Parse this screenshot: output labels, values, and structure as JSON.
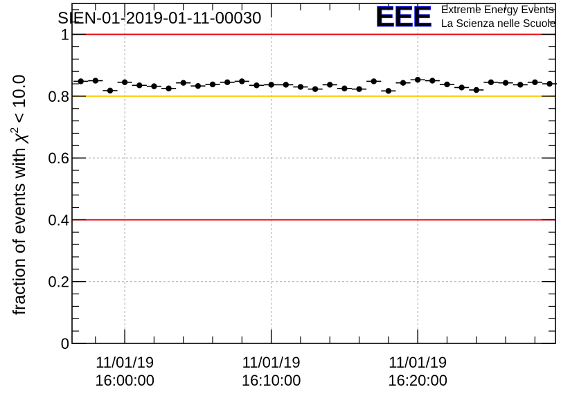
{
  "chart_data": {
    "type": "scatter",
    "title": "SIEN-01-2019-01-11-00030",
    "ylabel": "fraction of events with",
    "ylabel_chi": "χ",
    "ylabel_sup": "2",
    "ylabel_tail": "< 10.0",
    "ylim": [
      0,
      1.1
    ],
    "y_ticks": [
      {
        "v": 0,
        "label": "0"
      },
      {
        "v": 0.2,
        "label": "0.2"
      },
      {
        "v": 0.4,
        "label": "0.4"
      },
      {
        "v": 0.6,
        "label": "0.6"
      },
      {
        "v": 0.8,
        "label": "0.8"
      },
      {
        "v": 1.0,
        "label": "1"
      }
    ],
    "xlim_minutes": [
      -3.6,
      29.4
    ],
    "x_major_ticks": [
      {
        "t": 0,
        "date": "11/01/19",
        "time": "16:00:00"
      },
      {
        "t": 10,
        "date": "11/01/19",
        "time": "16:10:00"
      },
      {
        "t": 20,
        "date": "11/01/19",
        "time": "16:20:00"
      }
    ],
    "x_unit": "minutes after 11/01/19 16:00:00",
    "bin_width_minutes": 1,
    "x": [
      -3.0,
      -2.0,
      -1.0,
      0.0,
      1.0,
      2.0,
      3.0,
      4.0,
      5.0,
      6.0,
      7.0,
      8.0,
      9.0,
      10.0,
      11.0,
      12.0,
      13.0,
      14.0,
      15.0,
      16.0,
      17.0,
      18.0,
      19.0,
      20.0,
      21.0,
      22.0,
      23.0,
      24.0,
      25.0,
      26.0,
      27.0,
      28.0,
      29.0
    ],
    "values": [
      0.848,
      0.85,
      0.818,
      0.845,
      0.835,
      0.832,
      0.825,
      0.843,
      0.833,
      0.838,
      0.845,
      0.848,
      0.835,
      0.837,
      0.837,
      0.83,
      0.823,
      0.837,
      0.825,
      0.823,
      0.848,
      0.817,
      0.843,
      0.853,
      0.85,
      0.838,
      0.828,
      0.82,
      0.845,
      0.843,
      0.837,
      0.845,
      0.84
    ],
    "reference_lines": [
      {
        "y": 1.0,
        "color": "#e8000b"
      },
      {
        "y": 0.8,
        "color": "#ffcc00"
      },
      {
        "y": 0.4,
        "color": "#e8000b"
      }
    ],
    "grid": true
  },
  "logo": {
    "mark": "EEE",
    "line1": "Extreme Energy Events",
    "line2": "La Scienza nelle Scuole",
    "color": "#1010ee"
  }
}
